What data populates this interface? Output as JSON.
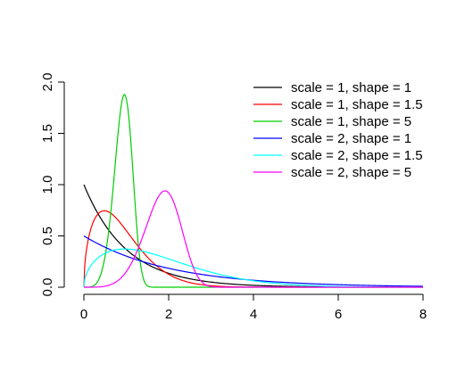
{
  "chart_data": {
    "type": "line",
    "title": "",
    "xlabel": "",
    "ylabel": "",
    "xlim": [
      0,
      8
    ],
    "ylim": [
      0,
      2.0
    ],
    "x_ticks": [
      "0",
      "2",
      "4",
      "6",
      "8"
    ],
    "y_ticks": [
      "0.0",
      "0.5",
      "1.0",
      "1.5",
      "2.0"
    ],
    "grid": false,
    "legend_position": "top-right",
    "series": [
      {
        "name": "scale = 1, shape = 1",
        "color": "#000000",
        "scale": 1,
        "shape": 1
      },
      {
        "name": "scale = 1, shape = 1.5",
        "color": "#ff0000",
        "scale": 1,
        "shape": 1.5
      },
      {
        "name": "scale = 1, shape = 5",
        "color": "#00cd00",
        "scale": 1,
        "shape": 5
      },
      {
        "name": "scale = 2, shape = 1",
        "color": "#0000ff",
        "scale": 2,
        "shape": 1
      },
      {
        "name": "scale = 2, shape = 1.5",
        "color": "#00ffff",
        "scale": 2,
        "shape": 1.5
      },
      {
        "name": "scale = 2, shape = 5",
        "color": "#ff00ff",
        "scale": 2,
        "shape": 5
      }
    ]
  }
}
